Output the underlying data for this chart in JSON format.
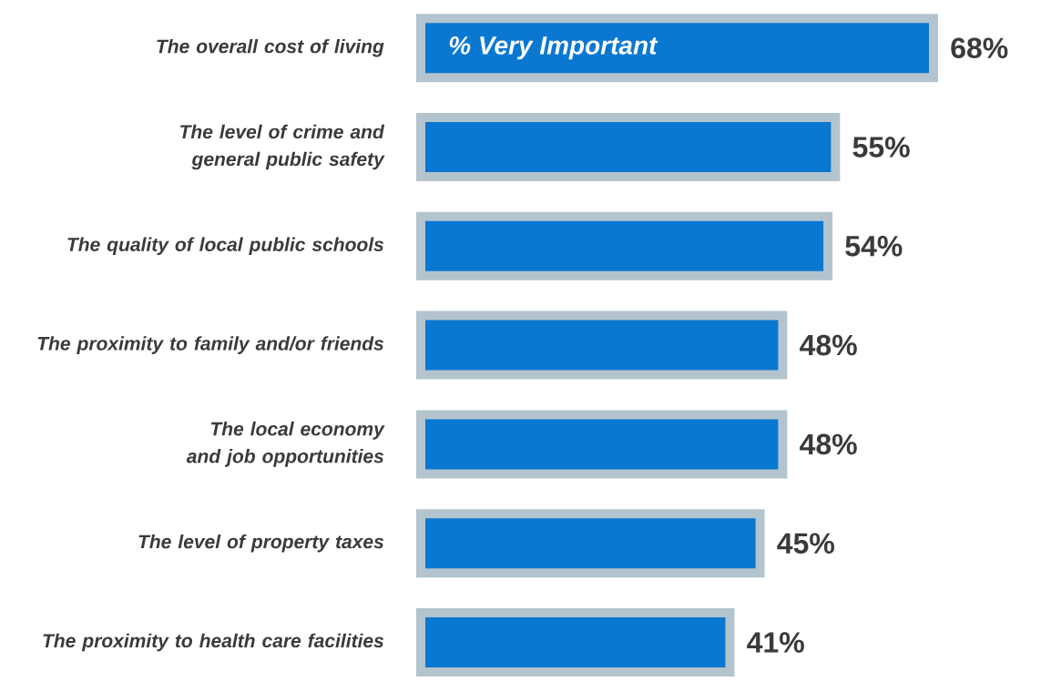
{
  "chart_data": {
    "type": "bar",
    "orientation": "horizontal",
    "categories": [
      "The overall cost of living",
      "The level of crime and general public safety",
      "The quality of local public schools",
      "The proximity to family and/or friends",
      "The local economy and job opportunities",
      "The level of property taxes",
      "The proximity to health care facilities"
    ],
    "series": [
      {
        "name": "% Very Important",
        "color": "#0a78d0",
        "values": [
          68,
          55,
          54,
          48,
          48,
          45,
          41
        ],
        "value_labels": [
          "68%",
          "55%",
          "54%",
          "48%",
          "48%",
          "45%",
          "41%"
        ]
      }
    ]
  }
}
